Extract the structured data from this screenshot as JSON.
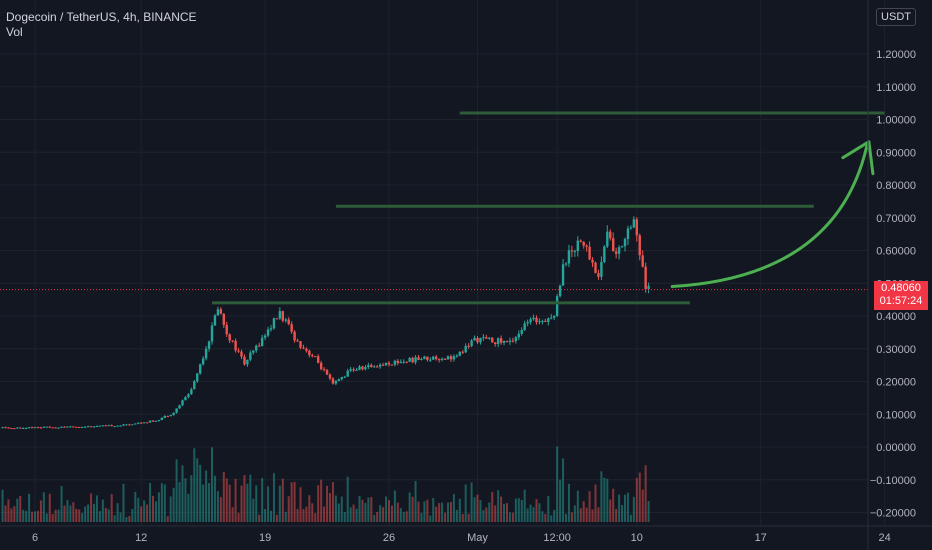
{
  "header": {
    "title": "Dogecoin / TetherUS, 4h, BINANCE",
    "volume_label": "Vol"
  },
  "price_axis": {
    "currency": "USDT",
    "ticks": [
      "1.20000",
      "1.10000",
      "1.00000",
      "0.90000",
      "0.80000",
      "0.70000",
      "0.60000",
      "0.50000",
      "0.40000",
      "0.30000",
      "0.20000",
      "0.10000",
      "0.00000",
      "−0.10000",
      "−0.20000"
    ]
  },
  "time_axis": {
    "ticks": [
      "6",
      "12",
      "19",
      "26",
      "May",
      "12:00",
      "10",
      "17",
      "24"
    ]
  },
  "last_price": {
    "value": "0.48060",
    "countdown": "01:57:24"
  },
  "colors": {
    "background": "#131722",
    "up": "#26a69a",
    "down": "#ef5350",
    "level_line": "#2e5b38",
    "arrow": "#4caf50",
    "price_badge": "#f23645"
  },
  "chart_data": {
    "type": "candlestick",
    "title": "Dogecoin / TetherUS, 4h, BINANCE",
    "ylim": [
      -0.22,
      1.28
    ],
    "y_scale": "linear",
    "grid": true,
    "x_date_ticks": [
      {
        "label": "6",
        "date": "2021-04-06"
      },
      {
        "label": "12",
        "date": "2021-04-12"
      },
      {
        "label": "19",
        "date": "2021-04-19"
      },
      {
        "label": "26",
        "date": "2021-04-26"
      },
      {
        "label": "May",
        "date": "2021-05-01"
      },
      {
        "label": "12:00",
        "date": "2021-05-05 12:00"
      },
      {
        "label": "10",
        "date": "2021-05-10"
      },
      {
        "label": "17",
        "date": "2021-05-17"
      },
      {
        "label": "24",
        "date": "2021-05-24"
      }
    ],
    "price_path": [
      [
        "2021-04-01",
        0.057
      ],
      [
        "2021-04-08",
        0.061
      ],
      [
        "2021-04-11",
        0.066
      ],
      [
        "2021-04-13",
        0.081
      ],
      [
        "2021-04-14",
        0.105
      ],
      [
        "2021-04-15",
        0.175
      ],
      [
        "2021-04-16",
        0.33
      ],
      [
        "2021-04-16 12:00",
        0.43
      ],
      [
        "2021-04-17",
        0.35
      ],
      [
        "2021-04-18",
        0.255
      ],
      [
        "2021-04-19",
        0.33
      ],
      [
        "2021-04-20",
        0.41
      ],
      [
        "2021-04-21",
        0.32
      ],
      [
        "2021-04-22",
        0.27
      ],
      [
        "2021-04-23",
        0.19
      ],
      [
        "2021-04-24",
        0.235
      ],
      [
        "2021-04-26",
        0.255
      ],
      [
        "2021-04-28",
        0.27
      ],
      [
        "2021-04-30",
        0.275
      ],
      [
        "2021-05-01",
        0.33
      ],
      [
        "2021-05-03",
        0.32
      ],
      [
        "2021-05-04",
        0.38
      ],
      [
        "2021-05-05 12:00",
        0.4
      ],
      [
        "2021-05-06",
        0.56
      ],
      [
        "2021-05-07",
        0.64
      ],
      [
        "2021-05-08",
        0.52
      ],
      [
        "2021-05-08 12:00",
        0.66
      ],
      [
        "2021-05-09",
        0.58
      ],
      [
        "2021-05-09 20:00",
        0.69
      ],
      [
        "2021-05-10",
        0.7
      ],
      [
        "2021-05-10 16:00",
        0.481
      ]
    ],
    "volume_max_fraction": 1.0,
    "levels": [
      {
        "price": 1.02,
        "from": "2021-04-30",
        "to": "2021-05-24"
      },
      {
        "price": 0.735,
        "from": "2021-04-23",
        "to": "2021-05-20"
      },
      {
        "price": 0.44,
        "from": "2021-04-16",
        "to": "2021-05-13"
      }
    ],
    "arrow": {
      "from": [
        "2021-05-12",
        0.49
      ],
      "to": [
        "2021-05-23",
        0.92
      ]
    },
    "last_price": 0.4806
  }
}
